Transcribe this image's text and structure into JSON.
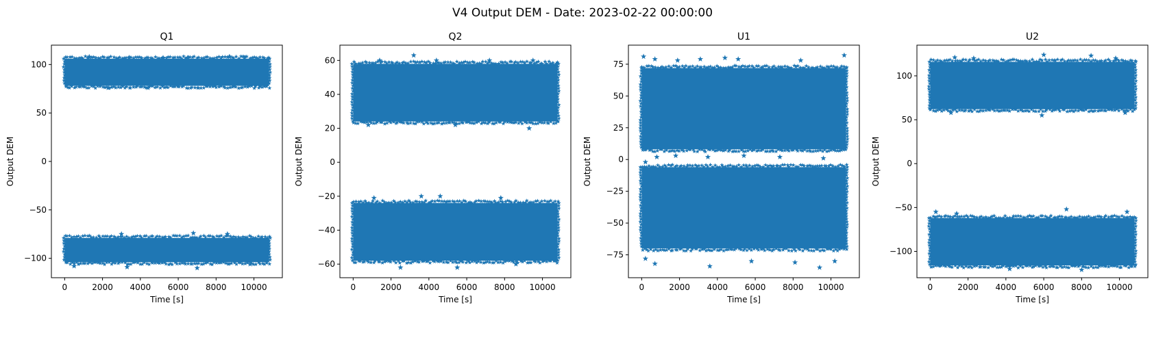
{
  "figure": {
    "title": "V4 Output DEM - Date: 2023-02-22 00:00:00",
    "marker_color": "#1f77b4"
  },
  "chart_data": [
    {
      "type": "scatter",
      "title": "Q1",
      "xlabel": "Time [s]",
      "ylabel": "Output DEM",
      "xlim": [
        -700,
        11500
      ],
      "ylim": [
        -120,
        120
      ],
      "xticks": [
        0,
        2000,
        4000,
        6000,
        8000,
        10000
      ],
      "yticks": [
        -100,
        -50,
        0,
        50,
        100
      ],
      "ytick_labels": [
        "−100",
        "−50",
        "0",
        "50",
        "100"
      ],
      "series": [
        {
          "x_range": [
            0,
            10800
          ],
          "y_upper": [
            78,
            106
          ],
          "y_lower": [
            -104,
            -79
          ]
        }
      ],
      "outliers": [
        {
          "x": 1300,
          "y": 108
        },
        {
          "x": 3400,
          "y": 107
        },
        {
          "x": 5200,
          "y": 107
        },
        {
          "x": 6500,
          "y": 107
        },
        {
          "x": 8700,
          "y": 108
        },
        {
          "x": 9500,
          "y": 107
        },
        {
          "x": 2300,
          "y": 76
        },
        {
          "x": 4400,
          "y": 76
        },
        {
          "x": 500,
          "y": -108
        },
        {
          "x": 3300,
          "y": -109
        },
        {
          "x": 7000,
          "y": -110
        },
        {
          "x": 3000,
          "y": -75
        },
        {
          "x": 6800,
          "y": -74
        },
        {
          "x": 8600,
          "y": -75
        },
        {
          "x": 9800,
          "y": -106
        }
      ]
    },
    {
      "type": "scatter",
      "title": "Q2",
      "xlabel": "Time [s]",
      "ylabel": "Output DEM",
      "xlim": [
        -700,
        11500
      ],
      "ylim": [
        -68,
        69
      ],
      "xticks": [
        0,
        2000,
        4000,
        6000,
        8000,
        10000
      ],
      "yticks": [
        -60,
        -40,
        -20,
        0,
        20,
        40,
        60
      ],
      "ytick_labels": [
        "−60",
        "−40",
        "−20",
        "0",
        "20",
        "40",
        "60"
      ],
      "series": [
        {
          "x_range": [
            0,
            10800
          ],
          "y_upper": [
            24,
            58
          ],
          "y_lower": [
            -58,
            -24
          ]
        }
      ],
      "outliers": [
        {
          "x": 3200,
          "y": 63
        },
        {
          "x": 1400,
          "y": 60
        },
        {
          "x": 4400,
          "y": 60
        },
        {
          "x": 7200,
          "y": 60
        },
        {
          "x": 9500,
          "y": 60
        },
        {
          "x": 5400,
          "y": 22
        },
        {
          "x": 9300,
          "y": 20
        },
        {
          "x": 800,
          "y": 22
        },
        {
          "x": 2500,
          "y": -62
        },
        {
          "x": 5500,
          "y": -62
        },
        {
          "x": 8600,
          "y": -60
        },
        {
          "x": 1100,
          "y": -21
        },
        {
          "x": 3600,
          "y": -20
        },
        {
          "x": 4600,
          "y": -20
        },
        {
          "x": 7800,
          "y": -21
        }
      ]
    },
    {
      "type": "scatter",
      "title": "U1",
      "xlabel": "Time [s]",
      "ylabel": "Output DEM",
      "xlim": [
        -700,
        11500
      ],
      "ylim": [
        -93,
        90
      ],
      "xticks": [
        0,
        2000,
        4000,
        6000,
        8000,
        10000
      ],
      "yticks": [
        -75,
        -50,
        -25,
        0,
        25,
        50,
        75
      ],
      "ytick_labels": [
        "−75",
        "−50",
        "−25",
        "0",
        "25",
        "50",
        "75"
      ],
      "series": [
        {
          "x_range": [
            0,
            10800
          ],
          "y_upper": [
            8,
            72
          ],
          "y_lower": [
            -70,
            -6
          ]
        }
      ],
      "outliers": [
        {
          "x": 100,
          "y": 81
        },
        {
          "x": 700,
          "y": 79
        },
        {
          "x": 3100,
          "y": 79
        },
        {
          "x": 4400,
          "y": 80
        },
        {
          "x": 5100,
          "y": 79
        },
        {
          "x": 8400,
          "y": 78
        },
        {
          "x": 10700,
          "y": 82
        },
        {
          "x": 1900,
          "y": 78
        },
        {
          "x": 800,
          "y": 2
        },
        {
          "x": 1800,
          "y": 3
        },
        {
          "x": 3500,
          "y": 2
        },
        {
          "x": 5400,
          "y": 3
        },
        {
          "x": 7300,
          "y": 2
        },
        {
          "x": 9600,
          "y": 1
        },
        {
          "x": 200,
          "y": -2
        },
        {
          "x": 200,
          "y": -78
        },
        {
          "x": 700,
          "y": -82
        },
        {
          "x": 3600,
          "y": -84
        },
        {
          "x": 5800,
          "y": -80
        },
        {
          "x": 8100,
          "y": -81
        },
        {
          "x": 9400,
          "y": -85
        },
        {
          "x": 10200,
          "y": -80
        }
      ]
    },
    {
      "type": "scatter",
      "title": "U2",
      "xlabel": "Time [s]",
      "ylabel": "Output DEM",
      "xlim": [
        -700,
        11500
      ],
      "ylim": [
        -130,
        135
      ],
      "xticks": [
        0,
        2000,
        4000,
        6000,
        8000,
        10000
      ],
      "yticks": [
        -100,
        -50,
        0,
        50,
        100
      ],
      "ytick_labels": [
        "−100",
        "−50",
        "0",
        "50",
        "100"
      ],
      "series": [
        {
          "x_range": [
            0,
            10800
          ],
          "y_upper": [
            62,
            116
          ],
          "y_lower": [
            -116,
            -62
          ]
        }
      ],
      "outliers": [
        {
          "x": 1300,
          "y": 121
        },
        {
          "x": 2300,
          "y": 120
        },
        {
          "x": 6000,
          "y": 124
        },
        {
          "x": 8500,
          "y": 123
        },
        {
          "x": 9800,
          "y": 120
        },
        {
          "x": 5900,
          "y": 55
        },
        {
          "x": 1100,
          "y": 58
        },
        {
          "x": 10300,
          "y": 58
        },
        {
          "x": 300,
          "y": -55
        },
        {
          "x": 1400,
          "y": -57
        },
        {
          "x": 7200,
          "y": -52
        },
        {
          "x": 10400,
          "y": -55
        },
        {
          "x": 4200,
          "y": -120
        },
        {
          "x": 8000,
          "y": -121
        }
      ]
    }
  ]
}
